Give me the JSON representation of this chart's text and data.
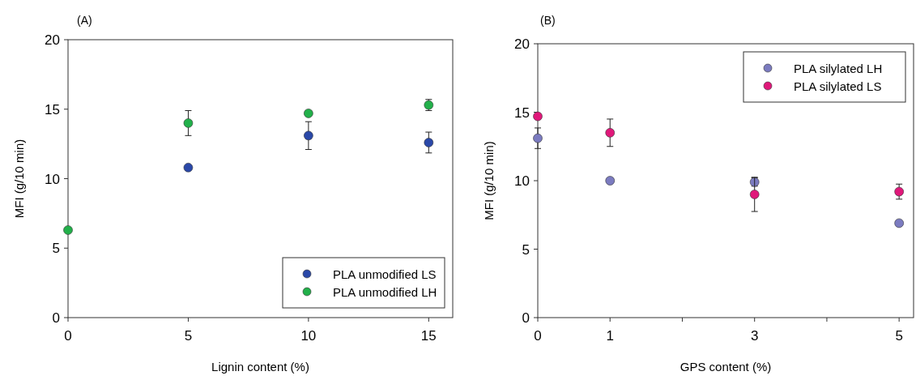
{
  "chart_data": [
    {
      "type": "scatter",
      "title": "(A)",
      "xlabel": "Lignin content (%)",
      "ylabel": "MFI (g/10 min)",
      "xlim": [
        0,
        16
      ],
      "xticks": [
        0,
        5,
        10,
        15
      ],
      "ylim": [
        0,
        20
      ],
      "yticks": [
        0,
        5,
        10,
        15,
        20
      ],
      "grid": false,
      "legend": "bottom right",
      "marker": "circle",
      "series": [
        {
          "name": "PLA unmodified LS",
          "color": "#2a48a8",
          "x": [
            5,
            10,
            15
          ],
          "values": [
            10.8,
            13.1,
            12.6
          ],
          "errors": [
            null,
            1.0,
            0.75
          ]
        },
        {
          "name": "PLA unmodified LH",
          "color": "#22b04a",
          "x": [
            0,
            5,
            10,
            15
          ],
          "values": [
            6.3,
            14.0,
            14.7,
            15.3
          ],
          "errors": [
            null,
            0.9,
            null,
            0.4
          ]
        }
      ]
    },
    {
      "type": "scatter",
      "title": "(B)",
      "xlabel": "GPS content (%)",
      "ylabel": "MFI (g/10 min)",
      "xlim": [
        0,
        5.2
      ],
      "xticks": [
        0,
        1,
        {
          "value": 2,
          "label": null
        },
        3,
        {
          "value": 4,
          "label": null
        },
        5
      ],
      "ylim": [
        0,
        20
      ],
      "yticks": [
        0,
        5,
        10,
        15,
        20
      ],
      "grid": false,
      "legend": "top right",
      "marker": "circle",
      "series": [
        {
          "name": "PLA silylated LH",
          "color": "#7b7bc0",
          "x": [
            0,
            1,
            3,
            5
          ],
          "values": [
            13.1,
            10.0,
            9.9,
            6.9
          ],
          "errors": [
            0.75,
            null,
            0.3,
            null
          ]
        },
        {
          "name": "PLA silylated LS",
          "color": "#e0187a",
          "x": [
            0,
            1,
            3,
            5
          ],
          "values": [
            14.7,
            13.5,
            9.0,
            9.2
          ],
          "errors": [
            null,
            1.0,
            1.25,
            0.55
          ]
        }
      ]
    }
  ]
}
